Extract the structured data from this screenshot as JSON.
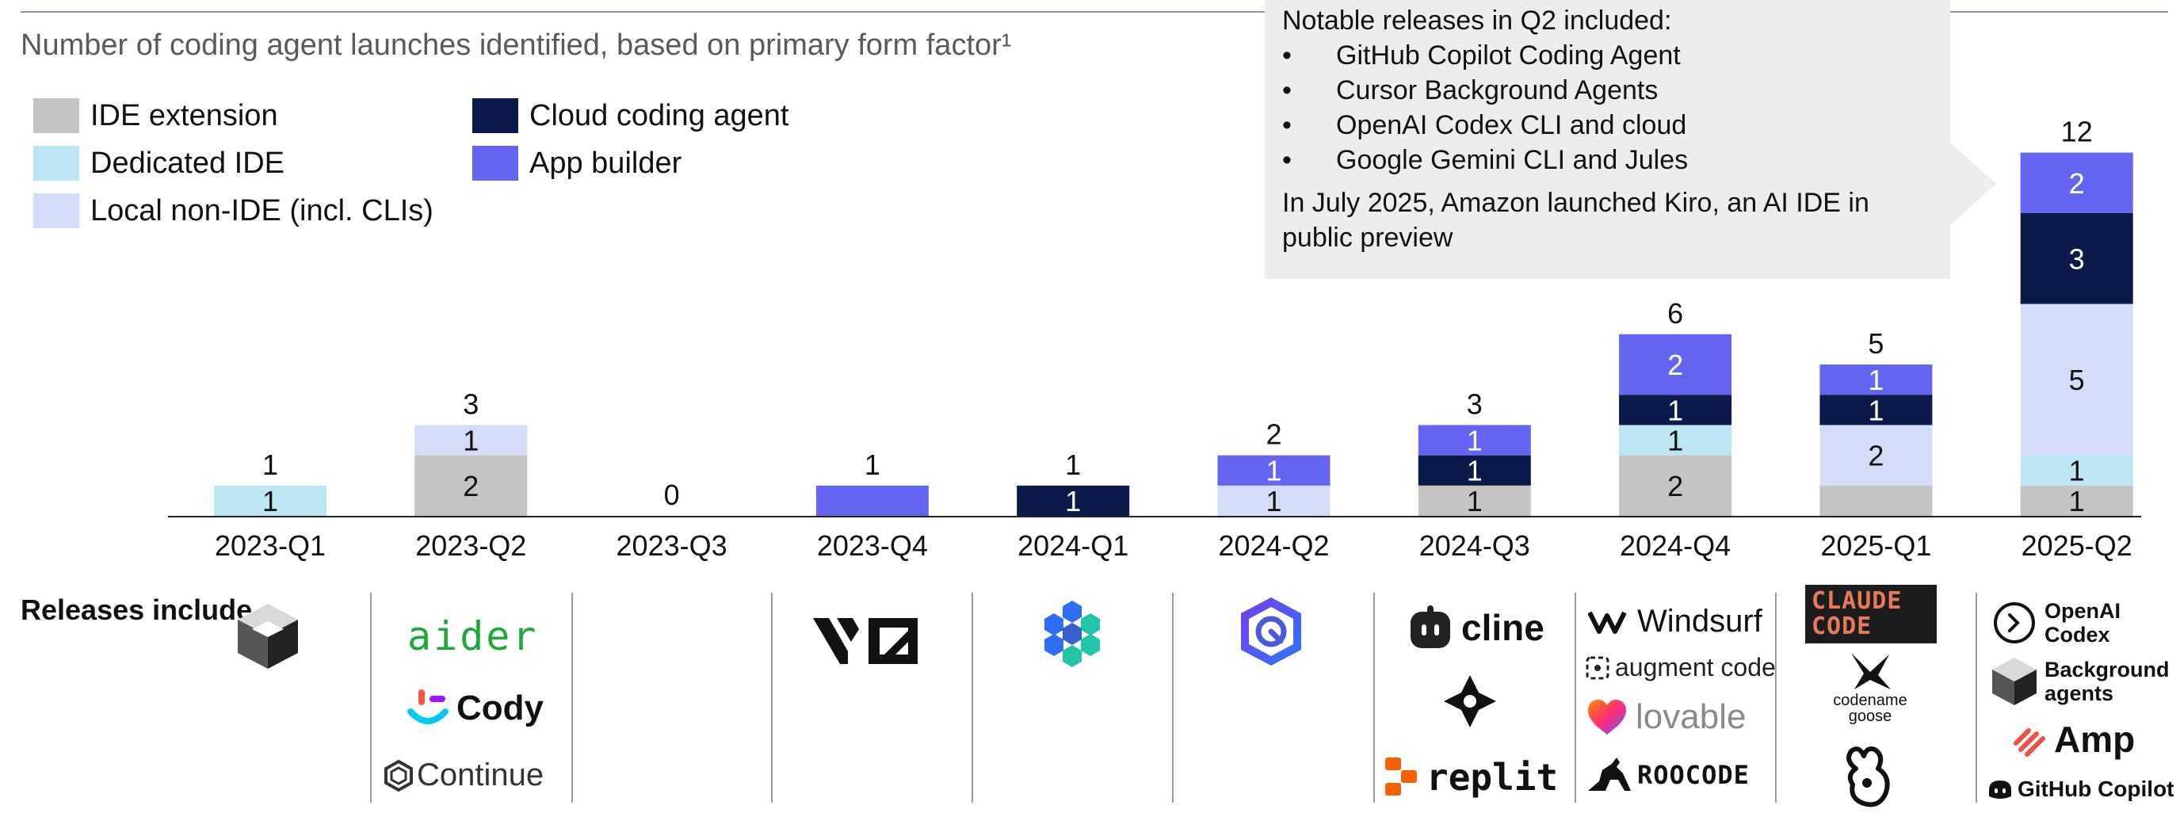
{
  "subtitle": "Number of coding agent launches identified, based on primary form factor¹",
  "legend": [
    {
      "label": "IDE extension",
      "color": "#c4c4c4"
    },
    {
      "label": "Dedicated IDE",
      "color": "#bde6f4"
    },
    {
      "label": "Local non-IDE (incl. CLIs)",
      "color": "#d5dcf8"
    },
    {
      "label": "Cloud coding agent",
      "color": "#0c1a4a"
    },
    {
      "label": "App builder",
      "color": "#6466f1"
    }
  ],
  "callout": {
    "heading": "Notable releases in Q2 included:",
    "items": [
      "GitHub Copilot Coding Agent",
      "Cursor Background Agents",
      "OpenAI Codex CLI and cloud",
      "Google Gemini CLI and Jules"
    ],
    "note": "In July 2025, Amazon launched Kiro, an AI IDE in public preview"
  },
  "releases_label": "Releases include",
  "releases": [
    {
      "quarter": "2023-Q1",
      "items": []
    },
    {
      "quarter": "2023-Q2",
      "items": [
        "aider",
        "Cody",
        "Continue"
      ]
    },
    {
      "quarter": "2023-Q3",
      "items": []
    },
    {
      "quarter": "2023-Q4",
      "items": [
        "v0"
      ]
    },
    {
      "quarter": "2024-Q1",
      "items": []
    },
    {
      "quarter": "2024-Q2",
      "items": []
    },
    {
      "quarter": "2024-Q3",
      "items": [
        "cline",
        "replit"
      ]
    },
    {
      "quarter": "2024-Q4",
      "items": [
        "Windsurf",
        "augment code",
        "lovable",
        "ROOCODE"
      ]
    },
    {
      "quarter": "2025-Q1",
      "items": [
        "CLAUDE CODE",
        "codename goose"
      ]
    },
    {
      "quarter": "2025-Q2",
      "items": [
        "OpenAI Codex",
        "Background agents",
        "Amp",
        "GitHub Copilot"
      ]
    }
  ],
  "chart_data": {
    "type": "bar",
    "stacked": true,
    "categories": [
      "2023-Q1",
      "2023-Q2",
      "2023-Q3",
      "2023-Q4",
      "2024-Q1",
      "2024-Q2",
      "2024-Q3",
      "2024-Q4",
      "2025-Q1",
      "2025-Q2"
    ],
    "series": [
      {
        "name": "IDE extension",
        "color": "#c4c4c4",
        "values": [
          0,
          2,
          0,
          0,
          0,
          0,
          1,
          2,
          1,
          1
        ],
        "labels": [
          "",
          "2",
          "",
          "",
          "",
          "",
          "1",
          "2",
          "",
          "1"
        ]
      },
      {
        "name": "Dedicated IDE",
        "color": "#bde6f4",
        "values": [
          1,
          0,
          0,
          0,
          0,
          0,
          0,
          1,
          0,
          1
        ],
        "labels": [
          "1",
          "",
          "",
          "",
          "",
          "",
          "",
          "1",
          "",
          "1"
        ]
      },
      {
        "name": "Local non-IDE (incl. CLIs)",
        "color": "#d5dcf8",
        "values": [
          0,
          1,
          0,
          0,
          0,
          1,
          0,
          0,
          2,
          5
        ],
        "labels": [
          "",
          "1",
          "",
          "",
          "",
          "1",
          "",
          "",
          "2",
          "5"
        ]
      },
      {
        "name": "Cloud coding agent",
        "color": "#0c1a4a",
        "values": [
          0,
          0,
          0,
          0,
          1,
          0,
          1,
          1,
          1,
          3
        ],
        "labels": [
          "",
          "",
          "",
          "",
          "1",
          "",
          "1",
          "1",
          "1",
          "3"
        ]
      },
      {
        "name": "App builder",
        "color": "#6466f1",
        "values": [
          0,
          0,
          0,
          1,
          0,
          1,
          1,
          2,
          1,
          2
        ],
        "labels": [
          "",
          "",
          "",
          "",
          "",
          "1",
          "1",
          "2",
          "1",
          "2"
        ]
      }
    ],
    "totals": [
      1,
      3,
      0,
      1,
      1,
      2,
      3,
      6,
      5,
      12
    ],
    "ylim": [
      0,
      12
    ],
    "grid": false,
    "legend_position": "top-left"
  }
}
